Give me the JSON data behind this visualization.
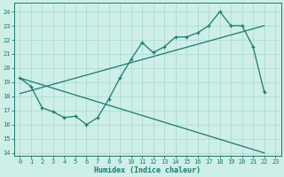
{
  "xlabel": "Humidex (Indice chaleur)",
  "bg_color": "#ceeee8",
  "line_color": "#1a7a6e",
  "grid_color": "#a8d8d0",
  "xlim": [
    -0.5,
    23.5
  ],
  "ylim": [
    13.8,
    24.6
  ],
  "yticks": [
    14,
    15,
    16,
    17,
    18,
    19,
    20,
    21,
    22,
    23,
    24
  ],
  "xticks": [
    0,
    1,
    2,
    3,
    4,
    5,
    6,
    7,
    8,
    9,
    10,
    11,
    12,
    13,
    14,
    15,
    16,
    17,
    18,
    19,
    20,
    21,
    22,
    23
  ],
  "series_main_x": [
    0,
    1,
    2,
    3,
    4,
    5,
    6,
    7,
    8,
    9,
    10,
    11,
    12,
    13,
    14,
    15,
    16,
    17,
    18,
    19,
    20,
    21,
    22
  ],
  "series_main_y": [
    19.3,
    18.7,
    17.2,
    16.9,
    16.5,
    16.6,
    16.0,
    16.5,
    17.8,
    19.3,
    20.6,
    21.8,
    21.1,
    21.5,
    22.2,
    22.2,
    22.5,
    23.0,
    24.0,
    23.0,
    23.0,
    21.5,
    18.3
  ],
  "series_decline_x": [
    0,
    22
  ],
  "series_decline_y": [
    19.3,
    14.0
  ],
  "series_trend_x": [
    0,
    22
  ],
  "series_trend_y": [
    18.2,
    23.0
  ]
}
